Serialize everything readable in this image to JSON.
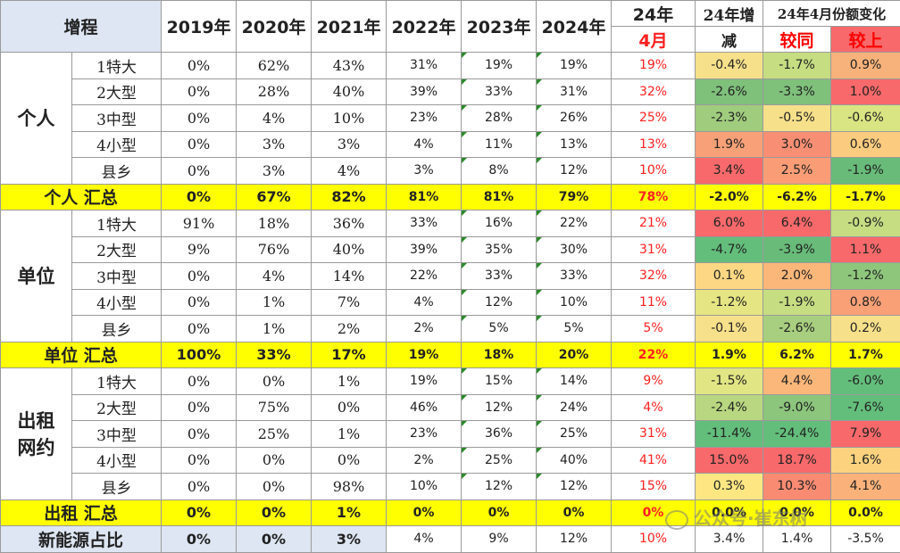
{
  "header": {
    "corner": "增程",
    "years": [
      "2019年",
      "2020年",
      "2021年",
      "2022年",
      "2023年",
      "2024年"
    ],
    "month_top": "24年",
    "month_bottom": "4月",
    "change_top": "24年增",
    "change_bottom": "减",
    "april_change": "24年4月份额变化",
    "yoy": "较同",
    "mom": "较上"
  },
  "groups": [
    {
      "name": "个人",
      "rows": [
        {
          "sub": "1特大",
          "v": [
            "0%",
            "62%",
            "43%",
            "31%",
            "19%",
            "19%",
            "19%",
            "-0.4%",
            "-1.7%",
            "0.9%"
          ],
          "c": [
            "#f6e08a",
            "#c6dd82",
            "#f6b27a"
          ]
        },
        {
          "sub": "2大型",
          "v": [
            "0%",
            "28%",
            "40%",
            "39%",
            "33%",
            "31%",
            "32%",
            "-2.6%",
            "-3.3%",
            "1.0%"
          ],
          "c": [
            "#7fc07b",
            "#7fc07b",
            "#f8696b"
          ]
        },
        {
          "sub": "3中型",
          "v": [
            "0%",
            "4%",
            "10%",
            "23%",
            "28%",
            "26%",
            "25%",
            "-2.3%",
            "-0.5%",
            "-0.6%"
          ],
          "c": [
            "#a0cc7e",
            "#f6e08a",
            "#d9e582"
          ]
        },
        {
          "sub": "4小型",
          "v": [
            "0%",
            "3%",
            "3%",
            "4%",
            "11%",
            "13%",
            "13%",
            "1.9%",
            "3.0%",
            "0.6%"
          ],
          "c": [
            "#f8a077",
            "#f88e73",
            "#fbcb7f"
          ]
        },
        {
          "sub": "县乡",
          "v": [
            "0%",
            "3%",
            "4%",
            "3%",
            "8%",
            "12%",
            "10%",
            "3.4%",
            "2.5%",
            "-1.9%"
          ],
          "c": [
            "#f8696b",
            "#fa9c76",
            "#68bb79"
          ]
        }
      ],
      "total": [
        "0%",
        "67%",
        "82%",
        "81%",
        "81%",
        "79%",
        "78%",
        "-2.0%",
        "-6.2%",
        "-1.7%"
      ],
      "total_label": "个人  汇总"
    },
    {
      "name": "单位",
      "rows": [
        {
          "sub": "1特大",
          "v": [
            "91%",
            "18%",
            "36%",
            "33%",
            "16%",
            "22%",
            "21%",
            "6.0%",
            "6.4%",
            "-0.9%"
          ],
          "c": [
            "#f8696b",
            "#f8696b",
            "#c6dd82"
          ]
        },
        {
          "sub": "2大型",
          "v": [
            "9%",
            "76%",
            "40%",
            "39%",
            "35%",
            "30%",
            "31%",
            "-4.7%",
            "-3.9%",
            "1.1%"
          ],
          "c": [
            "#63be7b",
            "#68bb79",
            "#f8696b"
          ]
        },
        {
          "sub": "3中型",
          "v": [
            "0%",
            "4%",
            "14%",
            "22%",
            "33%",
            "33%",
            "32%",
            "0.1%",
            "2.0%",
            "-1.2%"
          ],
          "c": [
            "#fdd783",
            "#fbb67a",
            "#8ec67c"
          ]
        },
        {
          "sub": "4小型",
          "v": [
            "0%",
            "1%",
            "7%",
            "4%",
            "12%",
            "10%",
            "11%",
            "-1.2%",
            "-1.9%",
            "0.8%"
          ],
          "c": [
            "#e6e583",
            "#c6dd82",
            "#f9a077"
          ]
        },
        {
          "sub": "县乡",
          "v": [
            "0%",
            "1%",
            "2%",
            "2%",
            "5%",
            "5%",
            "5%",
            "-0.1%",
            "-2.6%",
            "0.2%"
          ],
          "c": [
            "#f6e08a",
            "#a8cf7f",
            "#f6e08a"
          ]
        }
      ],
      "total": [
        "100%",
        "33%",
        "17%",
        "19%",
        "18%",
        "20%",
        "22%",
        "1.9%",
        "6.2%",
        "1.7%"
      ],
      "total_label": "单位  汇总"
    },
    {
      "name": "出租\n网约",
      "rows": [
        {
          "sub": "1特大",
          "v": [
            "0%",
            "0%",
            "1%",
            "19%",
            "15%",
            "14%",
            "9%",
            "-1.5%",
            "4.4%",
            "-6.0%"
          ],
          "c": [
            "#e1e583",
            "#fbb67a",
            "#63be7b"
          ]
        },
        {
          "sub": "2大型",
          "v": [
            "0%",
            "75%",
            "0%",
            "46%",
            "12%",
            "24%",
            "4%",
            "-2.4%",
            "-9.0%",
            "-7.6%"
          ],
          "c": [
            "#b8d780",
            "#8cc57c",
            "#63be7b"
          ]
        },
        {
          "sub": "3中型",
          "v": [
            "0%",
            "25%",
            "1%",
            "23%",
            "36%",
            "25%",
            "31%",
            "-11.4%",
            "-24.4%",
            "7.9%"
          ],
          "c": [
            "#63be7b",
            "#63be7b",
            "#f8696b"
          ]
        },
        {
          "sub": "4小型",
          "v": [
            "0%",
            "0%",
            "0%",
            "2%",
            "25%",
            "40%",
            "41%",
            "15.0%",
            "18.7%",
            "1.6%"
          ],
          "c": [
            "#f8696b",
            "#f8696b",
            "#fcd27f"
          ]
        },
        {
          "sub": "县乡",
          "v": [
            "0%",
            "0%",
            "98%",
            "10%",
            "12%",
            "12%",
            "15%",
            "0.3%",
            "10.3%",
            "4.1%"
          ],
          "c": [
            "#fee783",
            "#f98b72",
            "#fbb27a"
          ]
        }
      ],
      "total": [
        "0%",
        "0%",
        "1%",
        "0%",
        "0%",
        "0%",
        "0%",
        "0.0%",
        "0.0%",
        "0.0%"
      ],
      "total_label": "出租  汇总"
    }
  ],
  "nev": {
    "label": "新能源占比",
    "v": [
      "0%",
      "0%",
      "3%",
      "4%",
      "9%",
      "12%",
      "10%",
      "3.4%",
      "1.4%",
      "-3.5%"
    ]
  },
  "watermark": "公众号·崔东树",
  "colors": {
    "highlight": "#ffff00",
    "header_bg": "#dde6f2",
    "red_text": "#ff2020",
    "yoy_head": "#ff0000",
    "mom_head": "#f8696b"
  }
}
